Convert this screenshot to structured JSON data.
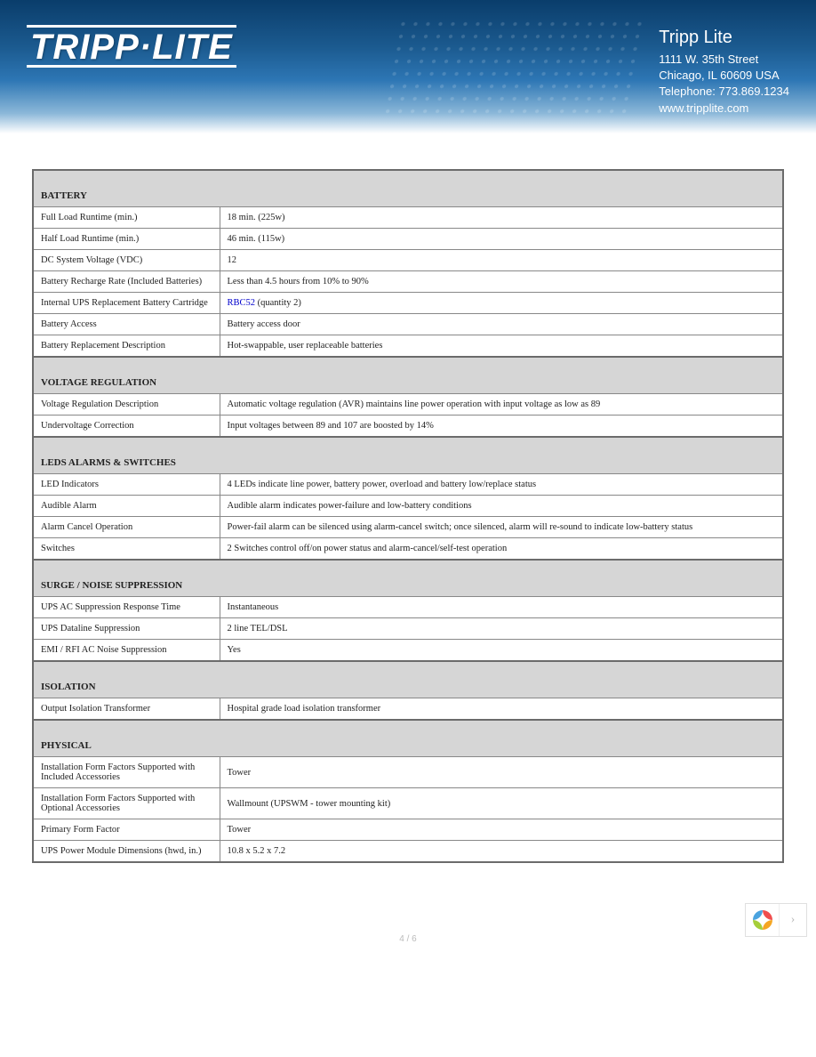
{
  "company": {
    "name": "Tripp Lite",
    "logo_text": "TRIPP·LITE",
    "address1": "1111 W. 35th Street",
    "address2": "Chicago, IL 60609 USA",
    "phone_label": "Telephone: 773.869.1234",
    "website": "www.tripplite.com"
  },
  "colors": {
    "header_gradient_top": "#0a3d6b",
    "header_gradient_bottom": "#ffffff",
    "section_bg": "#d6d6d6",
    "border": "#6b6b6b",
    "link": "#0000cc"
  },
  "sections": [
    {
      "title": "BATTERY",
      "rows": [
        {
          "label": "Full Load Runtime (min.)",
          "value": "18 min. (225w)"
        },
        {
          "label": "Half Load Runtime (min.)",
          "value": "46 min. (115w)"
        },
        {
          "label": "DC System Voltage (VDC)",
          "value": "12"
        },
        {
          "label": "Battery Recharge Rate (Included Batteries)",
          "value": "Less than 4.5 hours from 10% to 90%"
        },
        {
          "label": "Internal UPS Replacement Battery Cartridge",
          "link_text": "RBC52",
          "value_suffix": "   (quantity 2)"
        },
        {
          "label": "Battery Access",
          "value": "Battery access door"
        },
        {
          "label": "Battery Replacement Description",
          "value": "Hot-swappable, user replaceable batteries"
        }
      ]
    },
    {
      "title": "VOLTAGE REGULATION",
      "rows": [
        {
          "label": "Voltage Regulation Description",
          "value": "Automatic voltage regulation (AVR) maintains line power operation with input voltage as low as 89"
        },
        {
          "label": "Undervoltage Correction",
          "value": "Input voltages between 89 and 107 are boosted by 14%"
        }
      ]
    },
    {
      "title": "LEDS ALARMS & SWITCHES",
      "rows": [
        {
          "label": "LED Indicators",
          "value": "4 LEDs indicate line power, battery power, overload and battery low/replace status"
        },
        {
          "label": "Audible Alarm",
          "value": "Audible alarm indicates power-failure and low-battery conditions"
        },
        {
          "label": "Alarm Cancel Operation",
          "value": "Power-fail alarm can be silenced using alarm-cancel switch; once silenced, alarm will re-sound to indicate low-battery status"
        },
        {
          "label": "Switches",
          "value": "2 Switches control off/on power status and alarm-cancel/self-test operation"
        }
      ]
    },
    {
      "title": "SURGE / NOISE SUPPRESSION",
      "rows": [
        {
          "label": "UPS AC Suppression Response Time",
          "value": "Instantaneous"
        },
        {
          "label": "UPS Dataline Suppression",
          "value": "2 line TEL/DSL"
        },
        {
          "label": "EMI / RFI AC Noise Suppression",
          "value": "Yes"
        }
      ]
    },
    {
      "title": "ISOLATION",
      "rows": [
        {
          "label": "Output Isolation Transformer",
          "value": "Hospital grade load isolation transformer"
        }
      ]
    },
    {
      "title": "PHYSICAL",
      "rows": [
        {
          "label": "Installation Form Factors Supported with Included Accessories",
          "value": "Tower"
        },
        {
          "label": "Installation Form Factors Supported with Optional Accessories",
          "value": "Wallmount (UPSWM - tower mounting kit)"
        },
        {
          "label": "Primary Form Factor",
          "value": "Tower"
        },
        {
          "label": "UPS Power Module Dimensions (hwd, in.)",
          "value": "10.8 x 5.2 x 7.2"
        }
      ]
    }
  ],
  "page_indicator": "4 / 6",
  "pinwheel_colors": [
    "#f04e4e",
    "#f5a623",
    "#a6ce39",
    "#4aa3df"
  ]
}
